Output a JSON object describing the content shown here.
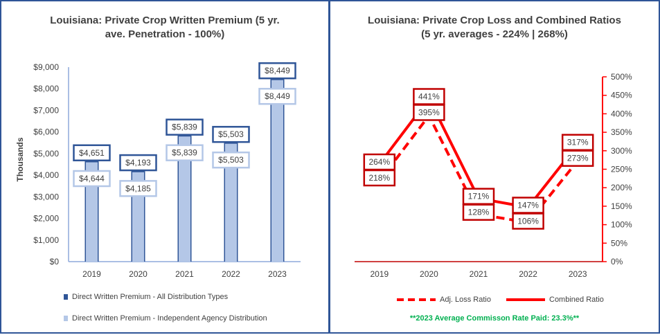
{
  "chart_data": [
    {
      "type": "bar",
      "title_lines": [
        "Louisiana: Private Crop Written Premium (5 yr.",
        "ave. Penetration - 100%)"
      ],
      "ylabel": "Thousands",
      "categories": [
        "2019",
        "2020",
        "2021",
        "2022",
        "2023"
      ],
      "ylim": [
        0,
        9000
      ],
      "yticks": [
        "$0",
        "$1,000",
        "$2,000",
        "$3,000",
        "$4,000",
        "$5,000",
        "$6,000",
        "$7,000",
        "$8,000",
        "$9,000"
      ],
      "series": [
        {
          "name": "Direct Written Premium - All Distribution Types",
          "values": [
            4651,
            4193,
            5839,
            5503,
            8449
          ],
          "labels": [
            "$4,651",
            "$4,193",
            "$5,839",
            "$5,503",
            "$8,449"
          ],
          "color": "#2f5597"
        },
        {
          "name": "Direct Written Premium - Independent Agency Distribution",
          "values": [
            4644,
            4185,
            5839,
            5503,
            8449
          ],
          "labels": [
            "$4,644",
            "$4,185",
            "$5,839",
            "$5,503",
            "$8,449"
          ],
          "color": "#b4c7e7"
        }
      ]
    },
    {
      "type": "line",
      "title_lines": [
        "Louisiana: Private Crop Loss and Combined Ratios",
        "(5 yr. averages - 224% | 268%)"
      ],
      "categories": [
        "2019",
        "2020",
        "2021",
        "2022",
        "2023"
      ],
      "ylim": [
        0,
        500
      ],
      "yticks": [
        "0%",
        "50%",
        "100%",
        "150%",
        "200%",
        "250%",
        "300%",
        "350%",
        "400%",
        "450%",
        "500%"
      ],
      "series": [
        {
          "name": "Adj. Loss Ratio",
          "values": [
            218,
            395,
            128,
            106,
            273
          ],
          "labels": [
            "218%",
            "395%",
            "128%",
            "106%",
            "273%"
          ],
          "style": "dashed",
          "color": "#ff0000"
        },
        {
          "name": "Combined Ratio",
          "values": [
            264,
            441,
            171,
            147,
            317
          ],
          "labels": [
            "264%",
            "441%",
            "171%",
            "147%",
            "317%"
          ],
          "style": "solid",
          "color": "#ff0000"
        }
      ],
      "note": "**2023 Average Commisson Rate Paid: 23.3%**"
    }
  ]
}
